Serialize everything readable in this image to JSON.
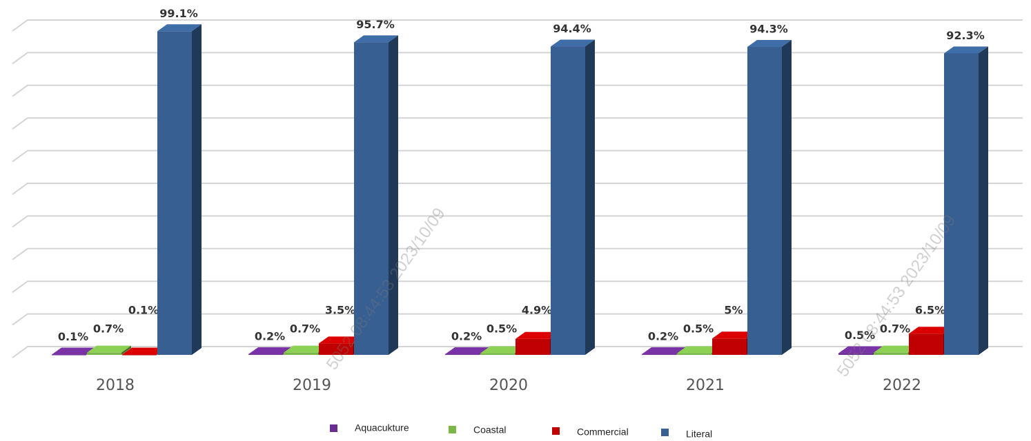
{
  "chart_data": {
    "type": "bar3d",
    "categories": [
      "2018",
      "2019",
      "2020",
      "2021",
      "2022"
    ],
    "series": [
      {
        "name": "Aquacukture",
        "color": "#6a2c91",
        "values": [
          0.1,
          0.2,
          0.2,
          0.2,
          0.5
        ],
        "value_labels": [
          "0.1%",
          "0.2%",
          "0.2%",
          "0.2%",
          "0.5%"
        ]
      },
      {
        "name": "Coastal",
        "color": "#7ab648",
        "values": [
          0.7,
          0.7,
          0.5,
          0.5,
          0.7
        ],
        "value_labels": [
          "0.7%",
          "0.7%",
          "0.5%",
          "0.5%",
          "0.7%"
        ]
      },
      {
        "name": "Commercial",
        "color": "#c00000",
        "values": [
          0.1,
          3.5,
          4.9,
          5,
          6.5
        ],
        "value_labels": [
          "0.1%",
          "3.5%",
          "4.9%",
          "5%",
          "6.5%"
        ]
      },
      {
        "name": "Literal",
        "color": "#375f92",
        "values": [
          99.1,
          95.7,
          94.4,
          94.3,
          92.3
        ],
        "value_labels": [
          "99.1%",
          "95.7%",
          "94.4%",
          "94.3%",
          "92.3%"
        ]
      }
    ],
    "ylim": [
      0,
      100
    ],
    "yticks": [
      0,
      10,
      20,
      30,
      40,
      50,
      60,
      70,
      80,
      90,
      100
    ],
    "grid": true,
    "legend": "bottom",
    "watermarks": [
      "5052 08:44:53 2023/10/09",
      "5052 08:44:53 2023/10/09"
    ]
  }
}
